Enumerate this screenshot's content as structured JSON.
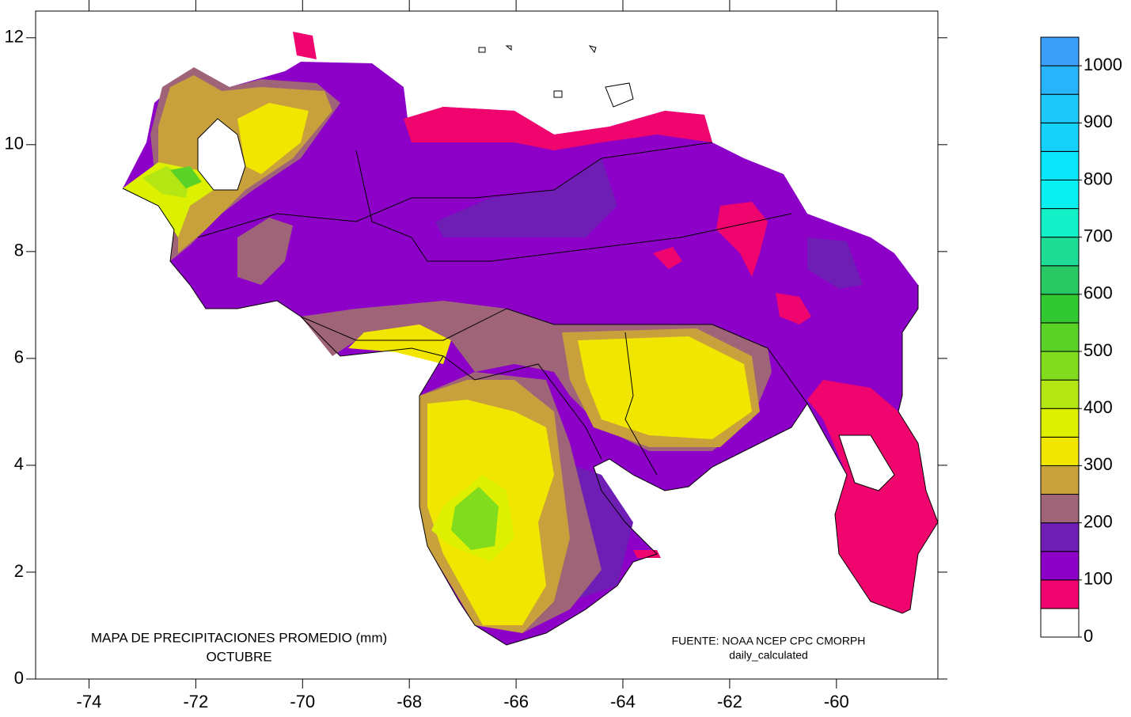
{
  "map": {
    "title": "MAPA DE PRECIPITACIONES PROMEDIO (mm)",
    "subtitle": "OCTUBRE",
    "source": "FUENTE: NOAA NCEP CPC CMORPH",
    "source_detail": "daily_calculated",
    "xlim": [
      -75,
      -58.1
    ],
    "ylim": [
      0,
      12.5
    ],
    "xticks": [
      -74,
      -72,
      -70,
      -68,
      -66,
      -64,
      -62,
      -60
    ],
    "yticks": [
      0,
      2,
      4,
      6,
      8,
      10,
      12
    ]
  },
  "legend": {
    "levels": [
      0,
      50,
      100,
      150,
      200,
      250,
      300,
      350,
      400,
      450,
      500,
      550,
      600,
      650,
      700,
      750,
      800,
      850,
      900,
      950,
      1000,
      1050
    ],
    "colors": [
      "#ffffff",
      "#f0056e",
      "#8c00c8",
      "#6e1eb4",
      "#a06478",
      "#c8a03c",
      "#f0e600",
      "#dcf000",
      "#b4e614",
      "#82dc1e",
      "#5ad228",
      "#32c832",
      "#28c864",
      "#1edc96",
      "#14f0c8",
      "#0af0f0",
      "#0ae6fa",
      "#14d2fa",
      "#1ec8fa",
      "#28b4fa",
      "#3ca0fa"
    ],
    "ticks": [
      0,
      100,
      200,
      300,
      400,
      500,
      600,
      700,
      800,
      900,
      1000
    ]
  }
}
